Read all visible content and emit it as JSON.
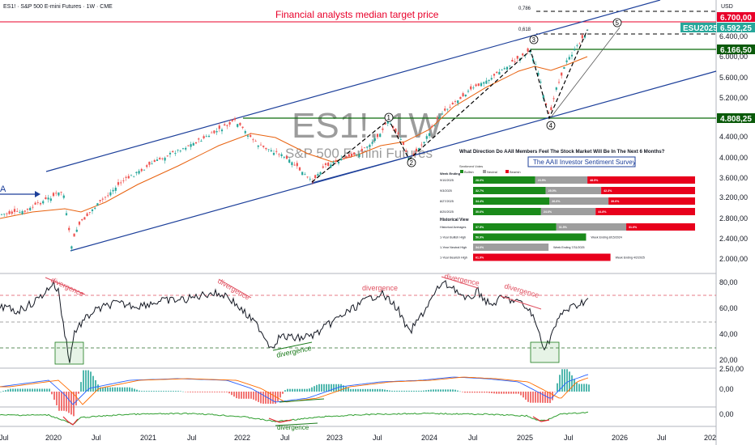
{
  "header": {
    "symbol_line": "ES1! · S&P 500 E-mini Futures · 1W · CME",
    "currency": "USD"
  },
  "watermark": {
    "ticker": "ES1!, 1W",
    "name": "S&P 500 E-mini Futures"
  },
  "annotations": {
    "target_title": "Financial analysts median target price",
    "fib_786": "0,786",
    "fib_618": "0,618",
    "wave_labels": [
      "1",
      "2",
      "3",
      "4",
      "5"
    ],
    "divergence": "divergence"
  },
  "price_axis": {
    "ticks": [
      "6.400,00",
      "6.000,00",
      "5.600,00",
      "5.200,00",
      "4.400,00",
      "4.000,00",
      "3.600,00",
      "3.200,00",
      "2.800,00",
      "2.400,00",
      "2.000,00"
    ],
    "badges": [
      {
        "label": "6.700,00",
        "color": "#e8002a"
      },
      {
        "label": "6.592,25",
        "color": "#26a69a"
      },
      {
        "label": "6.166,50",
        "color": "#0a5a0a"
      },
      {
        "label": "4.808,25",
        "color": "#0a5a0a"
      }
    ],
    "contract_tag": "ESU2025"
  },
  "rsi_axis": {
    "ticks": [
      "80,00",
      "60,00",
      "40,00",
      "20,00"
    ]
  },
  "macd_axis": {
    "ticks": [
      "2.50,00",
      "0,00"
    ]
  },
  "osc_axis": {
    "ticks": [
      "0,00"
    ]
  },
  "time_axis": {
    "labels": [
      "Jul",
      "2020",
      "Jul",
      "2021",
      "Jul",
      "2022",
      "Jul",
      "2023",
      "Jul",
      "2024",
      "Jul",
      "2025",
      "Jul",
      "2026",
      "Jul",
      "202"
    ]
  },
  "survey": {
    "question": "What Direction Do AAII Members Feel The Stock Market Will Be In The Next 6 Months?",
    "title": "The AAII Investor Sentiment Survey",
    "votes_label": "Sentiment Votes",
    "legend": [
      {
        "label": "Bullish",
        "color": "#1a8a1a"
      },
      {
        "label": "Neutral",
        "color": "#9e9e9e"
      },
      {
        "label": "Bearish",
        "color": "#e8001c"
      }
    ],
    "week_header": "Week Ending",
    "weeks": [
      {
        "date": "9/10/2025",
        "bull": 28.0,
        "neutral": 23.5,
        "bear": 48.5,
        "bull_label": "28.0%",
        "neutral_label": "23.5%",
        "bear_label": "48.5%"
      },
      {
        "date": "9/3/2025",
        "bull": 32.7,
        "neutral": 25.0,
        "bear": 42.3,
        "bull_label": "32.7%",
        "neutral_label": "25.0%",
        "bear_label": "42.3%"
      },
      {
        "date": "8/27/2025",
        "bull": 34.4,
        "neutral": 26.6,
        "bear": 39.0,
        "bull_label": "34.4%",
        "neutral_label": "26.6%",
        "bear_label": "39.0%"
      },
      {
        "date": "8/20/2025",
        "bull": 30.6,
        "neutral": 24.6,
        "bear": 44.8,
        "bull_label": "30.6%",
        "neutral_label": "24.6%",
        "bear_label": "44.8%"
      }
    ],
    "historical_header": "Historical View",
    "historical": [
      {
        "label": "Historical Averages",
        "bull": 37.5,
        "neutral": 31.5,
        "bear": 31.0,
        "bull_label": "37.5%",
        "neutral_label": "31.5%",
        "bear_label": "31.0%",
        "note": ""
      },
      {
        "label": "1-Year Bullish High",
        "bull": 50.9,
        "neutral": 0,
        "bear": 0,
        "bull_label": "50.9%",
        "neutral_label": "",
        "bear_label": "",
        "note": "Week Ending 8/15/2024"
      },
      {
        "label": "1-Year Neutral High",
        "bull": 0,
        "neutral": 34.0,
        "bear": 0,
        "bull_label": "",
        "neutral_label": "34.0%",
        "bear_label": "",
        "note": "Week Ending 7/31/2025"
      },
      {
        "label": "1-Year Bearish High",
        "bull": 0,
        "neutral": 0,
        "bear": 61.9,
        "bull_label": "",
        "neutral_label": "",
        "bear_label": "61.9%",
        "note": "Week Ending 4/2/2025"
      }
    ]
  },
  "colors": {
    "price": "#131722",
    "channel": "#1c3f9a",
    "ma": "#e8620f",
    "target": "#e8002a",
    "support": "#0a6b0a",
    "macd": "#2962ff",
    "signal": "#ff6d00",
    "hist_up": "#26a69a",
    "hist_down": "#ef5350",
    "osc": "#2e9e2e",
    "osc_neg": "#e0262f"
  }
}
